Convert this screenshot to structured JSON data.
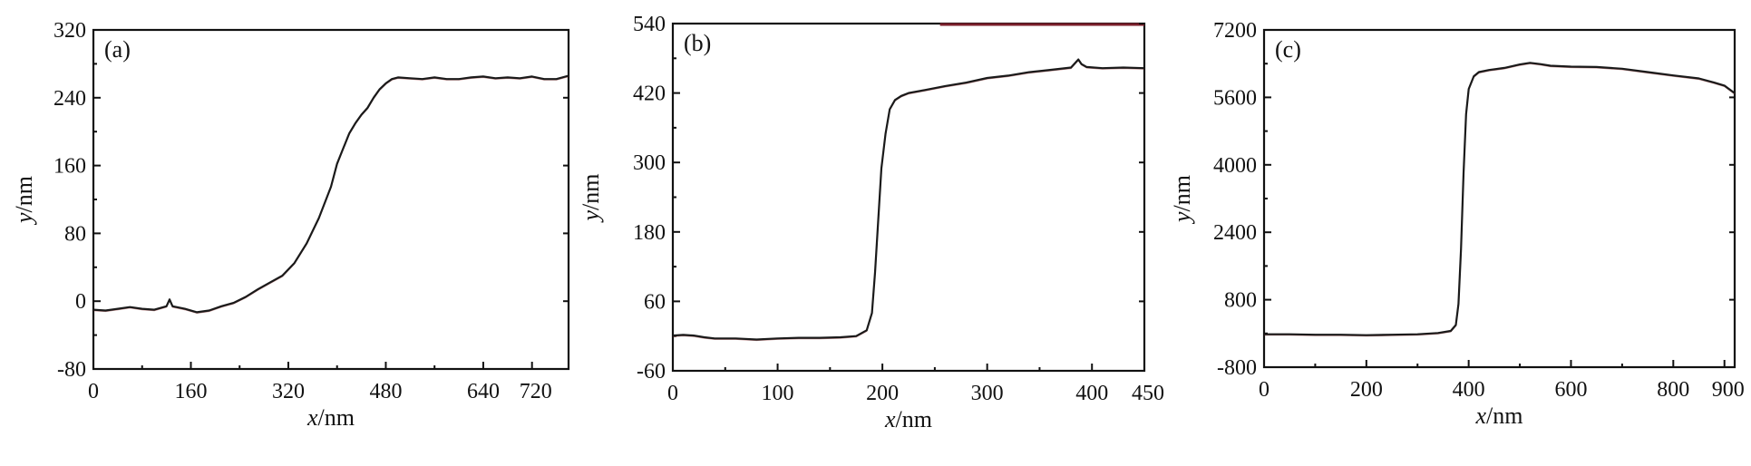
{
  "chart_data": [
    {
      "type": "line",
      "panel_label": "(a)",
      "xlabel_var": "x",
      "xlabel_unit": "/nm",
      "ylabel_var": "y",
      "ylabel_unit": "/nm",
      "xlim": [
        0,
        780
      ],
      "ylim": [
        -80,
        320
      ],
      "xticks": [
        0,
        160,
        320,
        480,
        640,
        720
      ],
      "yticks": [
        -80,
        0,
        80,
        160,
        240,
        320
      ],
      "series": [
        {
          "x": [
            0,
            20,
            40,
            60,
            80,
            100,
            120,
            125,
            130,
            150,
            170,
            190,
            210,
            230,
            250,
            270,
            290,
            310,
            330,
            350,
            370,
            390,
            400,
            410,
            420,
            430,
            440,
            450,
            460,
            470,
            480,
            490,
            500,
            520,
            540,
            560,
            580,
            600,
            620,
            640,
            660,
            680,
            700,
            720,
            740,
            760,
            780
          ],
          "y": [
            -10,
            -11,
            -9,
            -7,
            -9,
            -10,
            -6,
            2,
            -6,
            -9,
            -13,
            -11,
            -6,
            -2,
            5,
            14,
            22,
            30,
            45,
            68,
            98,
            135,
            162,
            180,
            198,
            210,
            220,
            228,
            240,
            250,
            257,
            262,
            264,
            263,
            262,
            264,
            262,
            262,
            264,
            265,
            263,
            264,
            263,
            265,
            262,
            262,
            266
          ]
        }
      ]
    },
    {
      "type": "line",
      "panel_label": "(b)",
      "xlabel_var": "x",
      "xlabel_unit": "/nm",
      "ylabel_var": "y",
      "ylabel_unit": "/nm",
      "xlim": [
        0,
        450
      ],
      "ylim": [
        -60,
        540
      ],
      "xticks": [
        0,
        100,
        200,
        300,
        400,
        450
      ],
      "yticks": [
        -60,
        60,
        180,
        300,
        420,
        540
      ],
      "top_band_x": [
        255,
        450
      ],
      "series": [
        {
          "x": [
            0,
            10,
            20,
            30,
            40,
            60,
            80,
            100,
            120,
            140,
            160,
            175,
            185,
            190,
            193,
            196,
            199,
            203,
            207,
            212,
            218,
            225,
            240,
            260,
            280,
            300,
            320,
            340,
            360,
            380,
            387,
            390,
            395,
            410,
            430,
            450
          ],
          "y": [
            1,
            2,
            1,
            -2,
            -4,
            -4,
            -6,
            -4,
            -3,
            -3,
            -2,
            0,
            10,
            40,
            110,
            200,
            290,
            350,
            392,
            408,
            415,
            420,
            425,
            432,
            438,
            446,
            450,
            456,
            460,
            464,
            478,
            470,
            465,
            463,
            464,
            463
          ]
        }
      ]
    },
    {
      "type": "line",
      "panel_label": "(c)",
      "xlabel_var": "x",
      "xlabel_unit": "/nm",
      "ylabel_var": "y",
      "ylabel_unit": "/nm",
      "xlim": [
        0,
        920
      ],
      "ylim": [
        -800,
        7200
      ],
      "xticks": [
        0,
        200,
        400,
        600,
        800,
        900
      ],
      "yticks": [
        -800,
        800,
        2400,
        4000,
        5600,
        7200
      ],
      "series": [
        {
          "x": [
            0,
            50,
            100,
            150,
            200,
            250,
            300,
            340,
            365,
            375,
            380,
            385,
            390,
            395,
            400,
            410,
            420,
            440,
            470,
            500,
            520,
            540,
            560,
            600,
            650,
            700,
            750,
            800,
            850,
            880,
            900,
            920
          ],
          "y": [
            -20,
            -20,
            -30,
            -30,
            -40,
            -30,
            -20,
            10,
            60,
            200,
            700,
            2000,
            3800,
            5200,
            5800,
            6100,
            6200,
            6250,
            6300,
            6380,
            6420,
            6390,
            6350,
            6330,
            6320,
            6280,
            6200,
            6120,
            6050,
            5950,
            5880,
            5700
          ]
        }
      ]
    }
  ]
}
